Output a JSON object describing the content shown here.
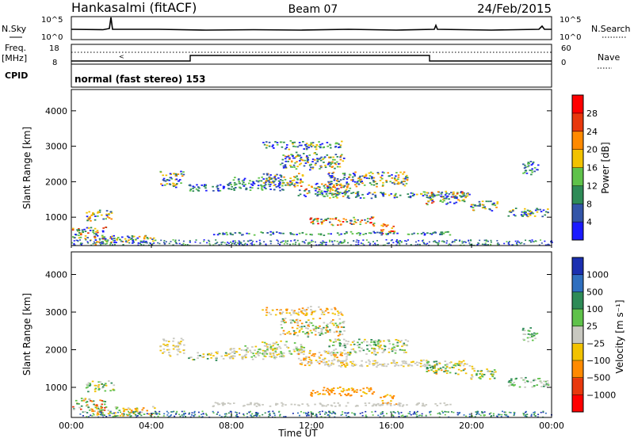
{
  "header": {
    "station": "Hankasalmi (fitACF)",
    "beam": "Beam 07",
    "date": "24/Feb/2015"
  },
  "top_panels": {
    "nsky_label": "N.Sky",
    "nsearch_label": "N.Search",
    "noise_ticks_left": [
      "10^5",
      "10^0"
    ],
    "noise_ticks_right": [
      "10^5",
      "10^0"
    ],
    "freq_label_1": "Freq.",
    "freq_label_2": "[MHz]",
    "freq_ticks": [
      "18",
      "8"
    ],
    "nave_label": "Nave",
    "nave_ticks": [
      "60",
      "0"
    ],
    "cpid_label": "CPID",
    "cpid_text": "normal (fast stereo) 153"
  },
  "chart_data": [
    {
      "type": "heatmap",
      "name": "power",
      "ylabel": "Slant Range [km]",
      "yticks": [
        "1000",
        "2000",
        "3000",
        "4000"
      ],
      "ylim": [
        200,
        4600
      ],
      "xlim": [
        0,
        24
      ],
      "colorbar_label": "Power [dB]",
      "colorbar_ticks": [
        "4",
        "8",
        "12",
        "16",
        "20",
        "24",
        "28"
      ],
      "colorbar_colors": [
        "#1a1aff",
        "#3355a8",
        "#2e8b57",
        "#5fc24a",
        "#f2c200",
        "#ff8a00",
        "#e8380d",
        "#ff0000"
      ]
    },
    {
      "type": "heatmap",
      "name": "velocity",
      "ylabel": "Slant Range [km]",
      "yticks": [
        "1000",
        "2000",
        "3000",
        "4000"
      ],
      "ylim": [
        200,
        4600
      ],
      "xlim": [
        0,
        24
      ],
      "xlabel": "Time UT",
      "xticks": [
        "00:00",
        "04:00",
        "08:00",
        "12:00",
        "16:00",
        "20:00",
        "00:00"
      ],
      "colorbar_label": "Velocity  [m s⁻¹]",
      "colorbar_ticks": [
        "1000",
        "500",
        "100",
        "25",
        "−25",
        "−100",
        "−500",
        "−1000"
      ],
      "colorbar_colors": [
        "#1a2fb0",
        "#2f6fbf",
        "#2e8b57",
        "#5fc24a",
        "#c8c8c0",
        "#f2c200",
        "#ff8a00",
        "#e8380d",
        "#ff0000"
      ]
    }
  ]
}
